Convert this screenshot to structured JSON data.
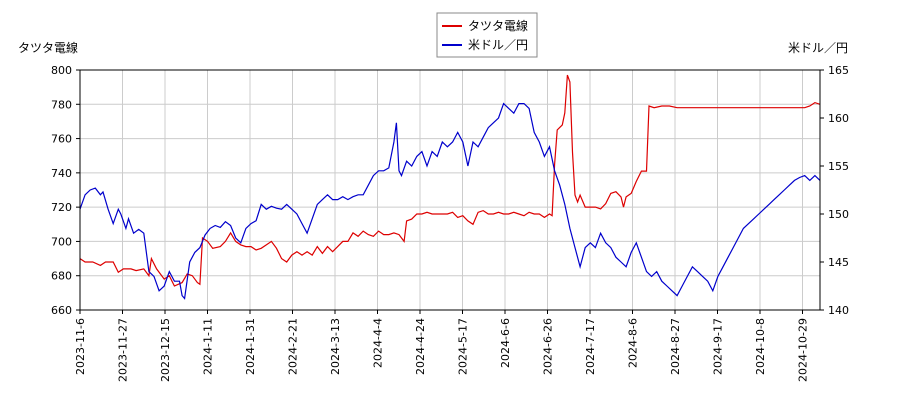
{
  "chart_data": {
    "type": "line",
    "legend_position": "top-center",
    "grid": true,
    "left_axis_title": "タツタ電線",
    "right_axis_title": "米ドル／円",
    "x_tick_labels": [
      "2023-11-6",
      "2023-11-27",
      "2023-12-15",
      "2024-1-11",
      "2024-1-31",
      "2024-2-21",
      "2024-3-13",
      "2024-4-4",
      "2024-4-24",
      "2024-5-17",
      "2024-6-6",
      "2024-6-26",
      "2024-7-17",
      "2024-8-6",
      "2024-8-27",
      "2024-9-17",
      "2024-10-8",
      "2024-10-29"
    ],
    "y_left": {
      "min": 660,
      "max": 800,
      "ticks": [
        660,
        680,
        700,
        720,
        740,
        760,
        780,
        800
      ]
    },
    "y_right": {
      "min": 140,
      "max": 165,
      "ticks": [
        140,
        145,
        150,
        155,
        160,
        165
      ]
    },
    "series": [
      {
        "name": "タツタ電線",
        "axis": "left",
        "color": "#dd0000",
        "points": [
          [
            0,
            690
          ],
          [
            2,
            688
          ],
          [
            5,
            688
          ],
          [
            8,
            686
          ],
          [
            10,
            688
          ],
          [
            13,
            688
          ],
          [
            15,
            682
          ],
          [
            17,
            684
          ],
          [
            20,
            684
          ],
          [
            22,
            683
          ],
          [
            25,
            684
          ],
          [
            27,
            680
          ],
          [
            28,
            690
          ],
          [
            30,
            684
          ],
          [
            33,
            678
          ],
          [
            35,
            680
          ],
          [
            37,
            674
          ],
          [
            40,
            676
          ],
          [
            42,
            681
          ],
          [
            44,
            680
          ],
          [
            46,
            676
          ],
          [
            47,
            675
          ],
          [
            48,
            702
          ],
          [
            50,
            700
          ],
          [
            52,
            696
          ],
          [
            55,
            697
          ],
          [
            57,
            700
          ],
          [
            59,
            705
          ],
          [
            61,
            700
          ],
          [
            63,
            698
          ],
          [
            65,
            697
          ],
          [
            67,
            697
          ],
          [
            69,
            695
          ],
          [
            71,
            696
          ],
          [
            73,
            698
          ],
          [
            75,
            700
          ],
          [
            77,
            696
          ],
          [
            79,
            690
          ],
          [
            81,
            688
          ],
          [
            83,
            692
          ],
          [
            85,
            694
          ],
          [
            87,
            692
          ],
          [
            89,
            694
          ],
          [
            91,
            692
          ],
          [
            93,
            697
          ],
          [
            95,
            693
          ],
          [
            97,
            697
          ],
          [
            99,
            694
          ],
          [
            101,
            697
          ],
          [
            103,
            700
          ],
          [
            105,
            700
          ],
          [
            107,
            705
          ],
          [
            109,
            703
          ],
          [
            111,
            706
          ],
          [
            113,
            704
          ],
          [
            115,
            703
          ],
          [
            117,
            706
          ],
          [
            119,
            704
          ],
          [
            121,
            704
          ],
          [
            123,
            705
          ],
          [
            125,
            704
          ],
          [
            127,
            700
          ],
          [
            128,
            712
          ],
          [
            130,
            713
          ],
          [
            132,
            716
          ],
          [
            134,
            716
          ],
          [
            136,
            717
          ],
          [
            138,
            716
          ],
          [
            140,
            716
          ],
          [
            142,
            716
          ],
          [
            144,
            716
          ],
          [
            146,
            717
          ],
          [
            148,
            714
          ],
          [
            150,
            715
          ],
          [
            152,
            712
          ],
          [
            154,
            710
          ],
          [
            156,
            717
          ],
          [
            158,
            718
          ],
          [
            160,
            716
          ],
          [
            162,
            716
          ],
          [
            164,
            717
          ],
          [
            166,
            716
          ],
          [
            168,
            716
          ],
          [
            170,
            717
          ],
          [
            172,
            716
          ],
          [
            174,
            715
          ],
          [
            176,
            717
          ],
          [
            178,
            716
          ],
          [
            180,
            716
          ],
          [
            182,
            714
          ],
          [
            184,
            716
          ],
          [
            185,
            715
          ],
          [
            186,
            745
          ],
          [
            187,
            765
          ],
          [
            189,
            768
          ],
          [
            190,
            775
          ],
          [
            191,
            797
          ],
          [
            192,
            793
          ],
          [
            193,
            752
          ],
          [
            194,
            727
          ],
          [
            195,
            723
          ],
          [
            196,
            727
          ],
          [
            198,
            720
          ],
          [
            200,
            720
          ],
          [
            202,
            720
          ],
          [
            204,
            719
          ],
          [
            206,
            722
          ],
          [
            208,
            728
          ],
          [
            210,
            729
          ],
          [
            212,
            726
          ],
          [
            213,
            720
          ],
          [
            214,
            726
          ],
          [
            216,
            728
          ],
          [
            218,
            735
          ],
          [
            220,
            741
          ],
          [
            222,
            741
          ],
          [
            223,
            779
          ],
          [
            225,
            778
          ],
          [
            228,
            779
          ],
          [
            231,
            779
          ],
          [
            234,
            778
          ],
          [
            237,
            778
          ],
          [
            240,
            778
          ],
          [
            244,
            778
          ],
          [
            248,
            778
          ],
          [
            252,
            778
          ],
          [
            256,
            778
          ],
          [
            260,
            778
          ],
          [
            264,
            778
          ],
          [
            268,
            778
          ],
          [
            272,
            778
          ],
          [
            276,
            778
          ],
          [
            280,
            778
          ],
          [
            284,
            778
          ],
          [
            286,
            779
          ],
          [
            288,
            781
          ],
          [
            290,
            780
          ]
        ]
      },
      {
        "name": "米ドル／円",
        "axis": "right",
        "color": "#0000cc",
        "points": [
          [
            0,
            150.5
          ],
          [
            2,
            152.0
          ],
          [
            4,
            152.5
          ],
          [
            6,
            152.7
          ],
          [
            8,
            152.0
          ],
          [
            9,
            152.3
          ],
          [
            11,
            150.5
          ],
          [
            13,
            149.0
          ],
          [
            15,
            150.5
          ],
          [
            16,
            150.0
          ],
          [
            18,
            148.5
          ],
          [
            19,
            149.5
          ],
          [
            21,
            148.0
          ],
          [
            23,
            148.4
          ],
          [
            25,
            148.0
          ],
          [
            27,
            144.0
          ],
          [
            29,
            143.5
          ],
          [
            31,
            142.0
          ],
          [
            33,
            142.5
          ],
          [
            35,
            144.0
          ],
          [
            37,
            143.0
          ],
          [
            39,
            143.0
          ],
          [
            40,
            141.5
          ],
          [
            41,
            141.2
          ],
          [
            43,
            145.0
          ],
          [
            45,
            146.0
          ],
          [
            47,
            146.5
          ],
          [
            49,
            147.8
          ],
          [
            51,
            148.5
          ],
          [
            53,
            148.8
          ],
          [
            55,
            148.6
          ],
          [
            57,
            149.2
          ],
          [
            59,
            148.8
          ],
          [
            61,
            147.5
          ],
          [
            63,
            147.0
          ],
          [
            65,
            148.5
          ],
          [
            67,
            149.0
          ],
          [
            69,
            149.3
          ],
          [
            71,
            151.0
          ],
          [
            73,
            150.5
          ],
          [
            75,
            150.8
          ],
          [
            77,
            150.6
          ],
          [
            79,
            150.5
          ],
          [
            81,
            151.0
          ],
          [
            83,
            150.5
          ],
          [
            85,
            150.0
          ],
          [
            87,
            149.0
          ],
          [
            89,
            148.0
          ],
          [
            91,
            149.5
          ],
          [
            93,
            151.0
          ],
          [
            95,
            151.5
          ],
          [
            97,
            152.0
          ],
          [
            99,
            151.5
          ],
          [
            101,
            151.5
          ],
          [
            103,
            151.8
          ],
          [
            105,
            151.5
          ],
          [
            107,
            151.8
          ],
          [
            109,
            152.0
          ],
          [
            111,
            152.0
          ],
          [
            113,
            153.0
          ],
          [
            115,
            154.0
          ],
          [
            117,
            154.5
          ],
          [
            119,
            154.5
          ],
          [
            121,
            154.8
          ],
          [
            123,
            157.5
          ],
          [
            124,
            159.5
          ],
          [
            125,
            154.5
          ],
          [
            126,
            154.0
          ],
          [
            128,
            155.5
          ],
          [
            130,
            155.0
          ],
          [
            132,
            156.0
          ],
          [
            134,
            156.5
          ],
          [
            136,
            155.0
          ],
          [
            138,
            156.5
          ],
          [
            140,
            156.0
          ],
          [
            142,
            157.5
          ],
          [
            144,
            157.0
          ],
          [
            146,
            157.5
          ],
          [
            148,
            158.5
          ],
          [
            150,
            157.5
          ],
          [
            152,
            155.0
          ],
          [
            154,
            157.5
          ],
          [
            156,
            157.0
          ],
          [
            158,
            158.0
          ],
          [
            160,
            159.0
          ],
          [
            162,
            159.5
          ],
          [
            164,
            160.0
          ],
          [
            166,
            161.5
          ],
          [
            168,
            161.0
          ],
          [
            170,
            160.5
          ],
          [
            172,
            161.5
          ],
          [
            174,
            161.5
          ],
          [
            176,
            161.0
          ],
          [
            178,
            158.5
          ],
          [
            180,
            157.5
          ],
          [
            182,
            156.0
          ],
          [
            184,
            157.0
          ],
          [
            186,
            154.5
          ],
          [
            188,
            153.0
          ],
          [
            190,
            151.0
          ],
          [
            192,
            148.5
          ],
          [
            194,
            146.5
          ],
          [
            196,
            144.5
          ],
          [
            198,
            146.5
          ],
          [
            200,
            147.0
          ],
          [
            202,
            146.5
          ],
          [
            204,
            148.0
          ],
          [
            206,
            147.0
          ],
          [
            208,
            146.5
          ],
          [
            210,
            145.5
          ],
          [
            212,
            145.0
          ],
          [
            214,
            144.5
          ],
          [
            216,
            146.0
          ],
          [
            218,
            147.0
          ],
          [
            220,
            145.5
          ],
          [
            222,
            144.0
          ],
          [
            224,
            143.5
          ],
          [
            226,
            144.0
          ],
          [
            228,
            143.0
          ],
          [
            230,
            142.5
          ],
          [
            232,
            142.0
          ],
          [
            234,
            141.5
          ],
          [
            236,
            142.5
          ],
          [
            238,
            143.5
          ],
          [
            240,
            144.5
          ],
          [
            242,
            144.0
          ],
          [
            244,
            143.5
          ],
          [
            246,
            143.0
          ],
          [
            248,
            142.0
          ],
          [
            250,
            143.5
          ],
          [
            252,
            144.5
          ],
          [
            254,
            145.5
          ],
          [
            256,
            146.5
          ],
          [
            258,
            147.5
          ],
          [
            260,
            148.5
          ],
          [
            262,
            149.0
          ],
          [
            264,
            149.5
          ],
          [
            266,
            150.0
          ],
          [
            268,
            150.5
          ],
          [
            270,
            151.0
          ],
          [
            272,
            151.5
          ],
          [
            274,
            152.0
          ],
          [
            276,
            152.5
          ],
          [
            278,
            153.0
          ],
          [
            280,
            153.5
          ],
          [
            282,
            153.8
          ],
          [
            284,
            154.0
          ],
          [
            286,
            153.5
          ],
          [
            288,
            154.0
          ],
          [
            290,
            153.5
          ]
        ]
      }
    ]
  },
  "legend": {
    "items": [
      {
        "label": "タツタ電線",
        "color": "#dd0000"
      },
      {
        "label": "米ドル／円",
        "color": "#0000cc"
      }
    ]
  }
}
